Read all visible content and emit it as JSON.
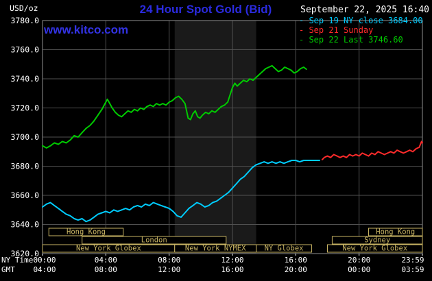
{
  "header": {
    "y_axis_unit": "USD/oz",
    "title": "24 Hour Spot Gold (Bid)",
    "datetime": "September 22, 2025 16:40",
    "watermark": "www.kitco.com"
  },
  "colors": {
    "background": "#000000",
    "plot_border": "#909090",
    "grid": "#515151",
    "text": "#ffffff",
    "title_blue": "#2b2bdf",
    "watermark_blue": "#3333e6",
    "session_khaki": "#c8b464",
    "nymex_band": "#1a1a1a",
    "series_cyan": "#00ccff",
    "series_red": "#ff2b2b",
    "series_green": "#00cb00"
  },
  "chart_data": {
    "type": "line",
    "title": "24 Hour Spot Gold (Bid)",
    "ylabel": "USD/oz",
    "ylim": [
      3620,
      3780
    ],
    "y_tick_step": 20,
    "xlim": [
      0,
      24
    ],
    "grid": true,
    "legend_position": "top-right",
    "nymex_band_hours": [
      8.35,
      13.5
    ],
    "x_axis": {
      "ny_label": "NY Time",
      "gmt_label": "GMT",
      "tick_hours": [
        0,
        4,
        8,
        12,
        16,
        20,
        24
      ],
      "ny_ticks": [
        "00:00",
        "04:00",
        "08:00",
        "12:00",
        "16:00",
        "20:00",
        "23:59"
      ],
      "gmt_ticks": [
        "04:00",
        "08:00",
        "12:00",
        "16:00",
        "20:00",
        "00:00",
        "03:59"
      ]
    },
    "series": [
      {
        "name": "Sep 19 NY close",
        "legend": "Sep 19 NY close 3684.00",
        "close_value": 3684.0,
        "color": "#00ccff",
        "points": [
          [
            0,
            3652
          ],
          [
            0.25,
            3654
          ],
          [
            0.5,
            3655
          ],
          [
            0.75,
            3653
          ],
          [
            1,
            3651
          ],
          [
            1.25,
            3649
          ],
          [
            1.5,
            3647
          ],
          [
            1.75,
            3646
          ],
          [
            2,
            3644
          ],
          [
            2.25,
            3643
          ],
          [
            2.5,
            3644
          ],
          [
            2.75,
            3642
          ],
          [
            3,
            3643
          ],
          [
            3.25,
            3645
          ],
          [
            3.5,
            3647
          ],
          [
            3.75,
            3648
          ],
          [
            4,
            3649
          ],
          [
            4.25,
            3648
          ],
          [
            4.5,
            3650
          ],
          [
            4.75,
            3649
          ],
          [
            5,
            3650
          ],
          [
            5.25,
            3651
          ],
          [
            5.5,
            3650
          ],
          [
            5.75,
            3652
          ],
          [
            6,
            3653
          ],
          [
            6.25,
            3652
          ],
          [
            6.5,
            3654
          ],
          [
            6.75,
            3653
          ],
          [
            7,
            3655
          ],
          [
            7.25,
            3654
          ],
          [
            7.5,
            3653
          ],
          [
            7.75,
            3652
          ],
          [
            8,
            3651
          ],
          [
            8.25,
            3649
          ],
          [
            8.5,
            3646
          ],
          [
            8.75,
            3645
          ],
          [
            9,
            3648
          ],
          [
            9.25,
            3651
          ],
          [
            9.5,
            3653
          ],
          [
            9.75,
            3655
          ],
          [
            10,
            3654
          ],
          [
            10.25,
            3652
          ],
          [
            10.5,
            3653
          ],
          [
            10.75,
            3655
          ],
          [
            11,
            3656
          ],
          [
            11.25,
            3658
          ],
          [
            11.5,
            3660
          ],
          [
            11.75,
            3662
          ],
          [
            12,
            3665
          ],
          [
            12.25,
            3668
          ],
          [
            12.5,
            3671
          ],
          [
            12.75,
            3673
          ],
          [
            13,
            3676
          ],
          [
            13.25,
            3679
          ],
          [
            13.5,
            3681
          ],
          [
            13.75,
            3682
          ],
          [
            14,
            3683
          ],
          [
            14.25,
            3682
          ],
          [
            14.5,
            3683
          ],
          [
            14.75,
            3682
          ],
          [
            15,
            3683
          ],
          [
            15.25,
            3682
          ],
          [
            15.5,
            3683
          ],
          [
            15.75,
            3684
          ],
          [
            16,
            3684
          ],
          [
            16.25,
            3683
          ],
          [
            16.5,
            3684
          ],
          [
            17,
            3684
          ],
          [
            17.5,
            3684
          ]
        ]
      },
      {
        "name": "Sep 21 Sunday",
        "legend": "Sep 21 Sunday",
        "color": "#ff2b2b",
        "points": [
          [
            17.67,
            3684.5
          ],
          [
            17.8,
            3686
          ],
          [
            18,
            3687
          ],
          [
            18.2,
            3686
          ],
          [
            18.4,
            3688
          ],
          [
            18.6,
            3687
          ],
          [
            18.8,
            3686
          ],
          [
            19,
            3687
          ],
          [
            19.2,
            3686
          ],
          [
            19.4,
            3688
          ],
          [
            19.6,
            3687
          ],
          [
            19.8,
            3688
          ],
          [
            20,
            3687
          ],
          [
            20.2,
            3689
          ],
          [
            20.4,
            3688
          ],
          [
            20.6,
            3687
          ],
          [
            20.8,
            3689
          ],
          [
            21,
            3688
          ],
          [
            21.2,
            3690
          ],
          [
            21.4,
            3689
          ],
          [
            21.6,
            3688
          ],
          [
            21.8,
            3689
          ],
          [
            22,
            3690
          ],
          [
            22.2,
            3689
          ],
          [
            22.4,
            3691
          ],
          [
            22.6,
            3690
          ],
          [
            22.8,
            3689
          ],
          [
            23,
            3690
          ],
          [
            23.2,
            3691
          ],
          [
            23.4,
            3690
          ],
          [
            23.6,
            3692
          ],
          [
            23.8,
            3693
          ],
          [
            23.95,
            3697
          ],
          [
            24,
            3696
          ]
        ]
      },
      {
        "name": "Sep 22 Last",
        "legend": "Sep 22 Last 3746.60",
        "last_value": 3746.6,
        "color": "#00cb00",
        "points": [
          [
            0,
            3694
          ],
          [
            0.25,
            3692.5
          ],
          [
            0.5,
            3694
          ],
          [
            0.75,
            3696
          ],
          [
            1,
            3695
          ],
          [
            1.25,
            3697
          ],
          [
            1.5,
            3696
          ],
          [
            1.75,
            3698
          ],
          [
            2,
            3701
          ],
          [
            2.25,
            3700
          ],
          [
            2.5,
            3703
          ],
          [
            2.75,
            3706
          ],
          [
            3,
            3708
          ],
          [
            3.25,
            3711
          ],
          [
            3.5,
            3715
          ],
          [
            3.75,
            3719
          ],
          [
            4,
            3724
          ],
          [
            4.1,
            3726
          ],
          [
            4.25,
            3723
          ],
          [
            4.4,
            3720
          ],
          [
            4.6,
            3717
          ],
          [
            4.8,
            3715
          ],
          [
            5,
            3714
          ],
          [
            5.2,
            3716
          ],
          [
            5.4,
            3718
          ],
          [
            5.6,
            3717
          ],
          [
            5.8,
            3719
          ],
          [
            6,
            3718
          ],
          [
            6.2,
            3720
          ],
          [
            6.4,
            3719
          ],
          [
            6.6,
            3721
          ],
          [
            6.8,
            3722
          ],
          [
            7,
            3721
          ],
          [
            7.2,
            3723
          ],
          [
            7.4,
            3722
          ],
          [
            7.6,
            3723
          ],
          [
            7.8,
            3722
          ],
          [
            8,
            3724
          ],
          [
            8.2,
            3725
          ],
          [
            8.4,
            3727
          ],
          [
            8.6,
            3728
          ],
          [
            8.8,
            3726
          ],
          [
            9,
            3723
          ],
          [
            9.1,
            3718
          ],
          [
            9.2,
            3713
          ],
          [
            9.35,
            3712
          ],
          [
            9.5,
            3716
          ],
          [
            9.65,
            3718
          ],
          [
            9.8,
            3714
          ],
          [
            9.95,
            3713
          ],
          [
            10.1,
            3715
          ],
          [
            10.3,
            3717
          ],
          [
            10.5,
            3716
          ],
          [
            10.7,
            3718
          ],
          [
            10.9,
            3717
          ],
          [
            11.1,
            3719
          ],
          [
            11.3,
            3721
          ],
          [
            11.5,
            3722
          ],
          [
            11.7,
            3724
          ],
          [
            11.85,
            3729
          ],
          [
            12,
            3734
          ],
          [
            12.15,
            3737
          ],
          [
            12.3,
            3735
          ],
          [
            12.5,
            3737
          ],
          [
            12.7,
            3739
          ],
          [
            12.9,
            3738
          ],
          [
            13.1,
            3740
          ],
          [
            13.3,
            3739
          ],
          [
            13.5,
            3741
          ],
          [
            13.7,
            3743
          ],
          [
            13.9,
            3745
          ],
          [
            14.1,
            3747
          ],
          [
            14.3,
            3748
          ],
          [
            14.5,
            3749
          ],
          [
            14.7,
            3747
          ],
          [
            14.9,
            3745
          ],
          [
            15.1,
            3746
          ],
          [
            15.3,
            3748
          ],
          [
            15.5,
            3747
          ],
          [
            15.7,
            3746
          ],
          [
            15.9,
            3744
          ],
          [
            16.1,
            3745
          ],
          [
            16.3,
            3747
          ],
          [
            16.5,
            3748
          ],
          [
            16.67,
            3746.6
          ]
        ]
      }
    ],
    "sessions": [
      {
        "label": "Hong Kong",
        "row": 1,
        "start": 0.4,
        "end": 5.1
      },
      {
        "label": "Hong Kong",
        "row": 1,
        "start": 20.6,
        "end": 24
      },
      {
        "label": "London",
        "row": 2,
        "start": 2.5,
        "end": 11.6
      },
      {
        "label": "Sydney",
        "row": 2,
        "start": 18.3,
        "end": 24
      },
      {
        "label": "New York Globex",
        "row": 3,
        "start": 0,
        "end": 8.35
      },
      {
        "label": "New York NYMEX",
        "row": 3,
        "start": 8.35,
        "end": 13.5
      },
      {
        "label": "NY Globex",
        "row": 3,
        "start": 13.5,
        "end": 17.0
      },
      {
        "label": "New York Globex",
        "row": 3,
        "start": 18.0,
        "end": 24
      }
    ]
  }
}
